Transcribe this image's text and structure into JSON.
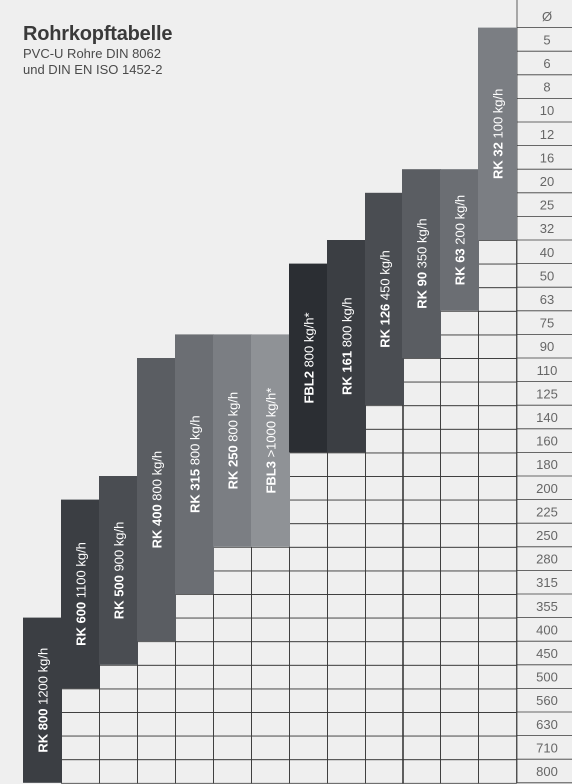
{
  "title": "Rohrkopftabelle",
  "subtitle_lines": [
    "PVC-U Rohre DIN 8062",
    "und DIN EN ISO 1452-2"
  ],
  "chart_data": {
    "type": "table",
    "row_header": "Ø",
    "diameters": [
      "5",
      "6",
      "8",
      "10",
      "12",
      "16",
      "20",
      "25",
      "32",
      "40",
      "50",
      "63",
      "75",
      "90",
      "110",
      "125",
      "140",
      "160",
      "180",
      "200",
      "225",
      "250",
      "280",
      "315",
      "355",
      "400",
      "450",
      "500",
      "560",
      "630",
      "710",
      "800"
    ],
    "heads": [
      {
        "model": "RK 800",
        "capacity": "1200 kg/h",
        "min_d": "400",
        "max_d": "800",
        "color": "#3b3e43"
      },
      {
        "model": "RK 600",
        "capacity": "1100 kg/h",
        "min_d": "225",
        "max_d": "500",
        "color": "#3b3e43"
      },
      {
        "model": "RK 500",
        "capacity": "900 kg/h",
        "min_d": "200",
        "max_d": "450",
        "color": "#4a4d52"
      },
      {
        "model": "RK 400",
        "capacity": "800 kg/h",
        "min_d": "110",
        "max_d": "400",
        "color": "#5a5d62"
      },
      {
        "model": "RK 315",
        "capacity": "800 kg/h",
        "min_d": "90",
        "max_d": "315",
        "color": "#6b6e73"
      },
      {
        "model": "RK 250",
        "capacity": "800 kg/h",
        "min_d": "90",
        "max_d": "250",
        "color": "#7b7e83"
      },
      {
        "model": "FBL3",
        "capacity": ">1000 kg/h*",
        "min_d": "90",
        "max_d": "250",
        "color": "#8f9296"
      },
      {
        "model": "FBL2",
        "capacity": "800 kg/h*",
        "min_d": "50",
        "max_d": "160",
        "color": "#2b2e33"
      },
      {
        "model": "RK 161",
        "capacity": "800 kg/h",
        "min_d": "40",
        "max_d": "160",
        "color": "#3b3e43"
      },
      {
        "model": "RK 126",
        "capacity": "450 kg/h",
        "min_d": "25",
        "max_d": "125",
        "color": "#4a4d52"
      },
      {
        "model": "RK 90",
        "capacity": "350 kg/h",
        "min_d": "20",
        "max_d": "90",
        "color": "#5a5d62"
      },
      {
        "model": "RK 63",
        "capacity": "200 kg/h",
        "min_d": "20",
        "max_d": "63",
        "color": "#6b6e73"
      },
      {
        "model": "RK 32",
        "capacity": "100 kg/h",
        "min_d": "5",
        "max_d": "32",
        "color": "#7b7e83"
      }
    ]
  },
  "colors": {
    "background": "#efefef",
    "grid_line": "#3a3a3a",
    "label_text": "#666666",
    "bar_text": "#ffffff"
  }
}
